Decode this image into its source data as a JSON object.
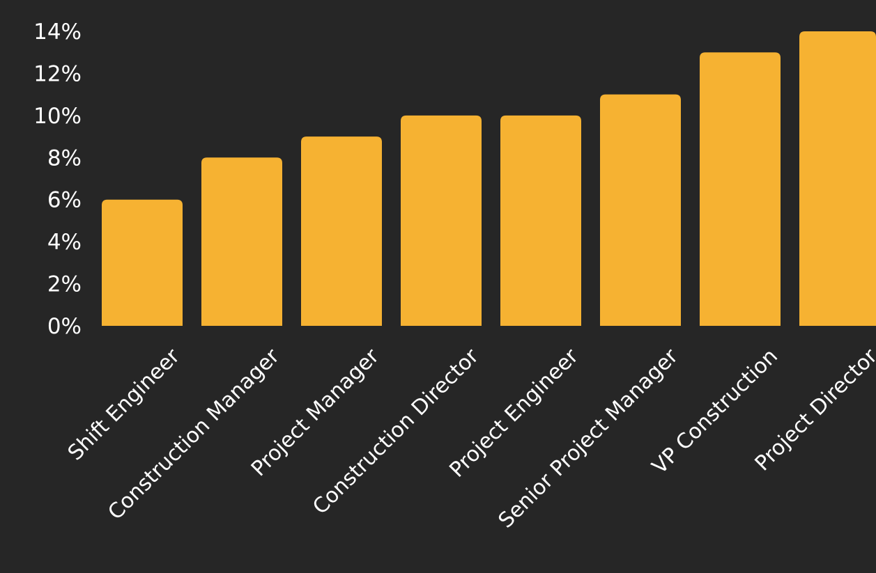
{
  "chart_data": {
    "type": "bar",
    "categories": [
      "Shift Engineer",
      "Construction Manager",
      "Project Manager",
      "Construction Director",
      "Project Engineer",
      "Senior Project Manager",
      "VP Construction",
      "Project Director"
    ],
    "values": [
      6,
      8,
      9,
      10,
      10,
      11,
      13,
      14
    ],
    "ylim": [
      0,
      14
    ],
    "yticks": [
      0,
      2,
      4,
      6,
      8,
      10,
      12,
      14
    ],
    "ytick_labels": [
      "0%",
      "2%",
      "4%",
      "6%",
      "8%",
      "10%",
      "12%",
      "14%"
    ],
    "grid": false,
    "colors": {
      "background": "#262626",
      "bar": "#F6B232",
      "text": "#FFFFFF"
    }
  }
}
